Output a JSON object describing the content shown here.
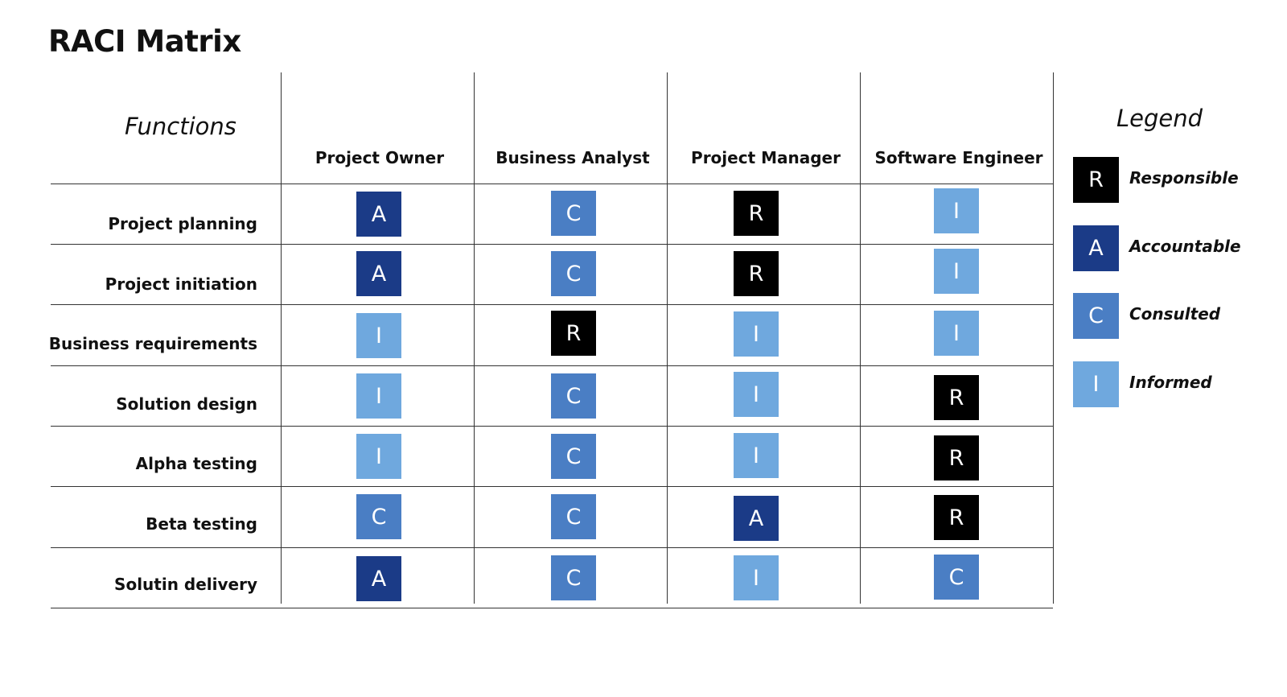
{
  "title": "RACI Matrix",
  "functions_label": "Functions",
  "columns": [
    "Project Owner",
    "Business Analyst",
    "Project Manager",
    "Software Engineer"
  ],
  "rows": [
    {
      "label": "Project planning",
      "cells": [
        "A",
        "C",
        "R",
        "I"
      ]
    },
    {
      "label": "Project initiation",
      "cells": [
        "A",
        "C",
        "R",
        "I"
      ]
    },
    {
      "label": "Business requirements",
      "cells": [
        "I",
        "R",
        "I",
        "I"
      ]
    },
    {
      "label": "Solution design",
      "cells": [
        "I",
        "C",
        "I",
        "R"
      ]
    },
    {
      "label": "Alpha testing",
      "cells": [
        "I",
        "C",
        "I",
        "R"
      ]
    },
    {
      "label": "Beta testing",
      "cells": [
        "C",
        "C",
        "A",
        "R"
      ]
    },
    {
      "label": "Solutin delivery",
      "cells": [
        "A",
        "C",
        "I",
        "C"
      ]
    }
  ],
  "legend": {
    "title": "Legend",
    "items": [
      {
        "code": "R",
        "label": "Responsible",
        "color": "#000000"
      },
      {
        "code": "A",
        "label": "Accountable",
        "color": "#1b3b87"
      },
      {
        "code": "C",
        "label": "Consulted",
        "color": "#4a7ec4"
      },
      {
        "code": "I",
        "label": "Informed",
        "color": "#6fa8de"
      }
    ]
  },
  "colors": {
    "R": "#000000",
    "A": "#1b3b87",
    "C": "#4a7ec4",
    "I": "#6fa8de"
  }
}
